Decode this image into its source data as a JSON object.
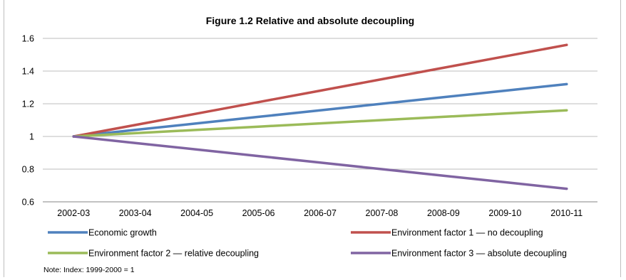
{
  "chart_data": {
    "type": "line",
    "title": "Figure 1.2 Relative and absolute decoupling",
    "categories": [
      "2002-03",
      "2003-04",
      "2004-05",
      "2005-06",
      "2006-07",
      "2007-08",
      "2008-09",
      "2009-10",
      "2010-11"
    ],
    "yticks": [
      "0.6",
      "0.8",
      "1",
      "1.2",
      "1.4",
      "1.6"
    ],
    "ylim": [
      0.6,
      1.6
    ],
    "grid": true,
    "legend_position": "bottom",
    "series": [
      {
        "name": "Economic growth",
        "color": "#4f81bd",
        "values": [
          1.0,
          1.04,
          1.08,
          1.12,
          1.16,
          1.2,
          1.24,
          1.28,
          1.32
        ]
      },
      {
        "name": "Environment factor 1 — no decoupling",
        "color": "#c0504d",
        "values": [
          1.0,
          1.07,
          1.14,
          1.21,
          1.28,
          1.35,
          1.42,
          1.49,
          1.56
        ]
      },
      {
        "name": "Environment factor 2 — relative decoupling",
        "color": "#9bbb59",
        "values": [
          1.0,
          1.02,
          1.04,
          1.06,
          1.08,
          1.1,
          1.12,
          1.14,
          1.16
        ]
      },
      {
        "name": "Environment factor 3 — absolute decoupling",
        "color": "#8064a2",
        "values": [
          1.0,
          0.96,
          0.92,
          0.88,
          0.84,
          0.8,
          0.76,
          0.72,
          0.68
        ]
      }
    ]
  },
  "note": "Note: Index: 1999-2000 = 1"
}
